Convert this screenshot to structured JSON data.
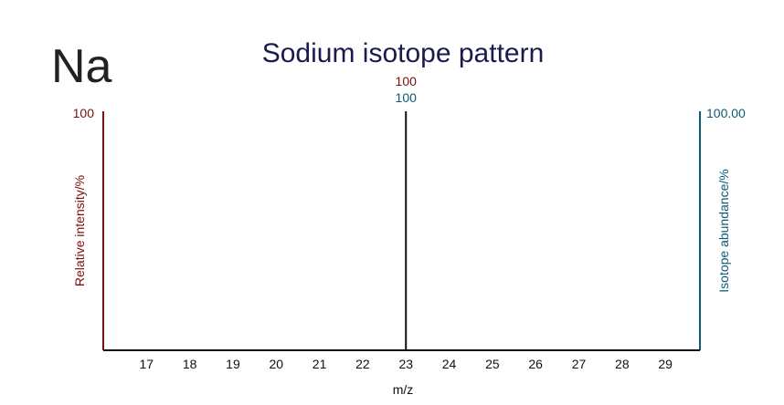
{
  "element_symbol": "Na",
  "colors": {
    "intensity": "#7a0f0f",
    "abundance": "#0d5a78",
    "peak": "#111111",
    "title": "#1a1a4e"
  },
  "chart_data": {
    "type": "bar",
    "title": "Sodium isotope pattern",
    "xlabel": "m/z",
    "ylabel_left": "Relative intensity/%",
    "ylabel_right": "Isotope abundance/%",
    "x_ticks": [
      17,
      18,
      19,
      20,
      21,
      22,
      23,
      24,
      25,
      26,
      27,
      28,
      29
    ],
    "xlim": [
      16.0,
      29.8
    ],
    "ylim": [
      0,
      100
    ],
    "left_axis_max_label": "100",
    "right_axis_max_label": "100.00",
    "peaks": [
      {
        "mz": 23,
        "relative_intensity": 100,
        "isotope_abundance": 100,
        "intensity_label": "100",
        "abundance_label": "100"
      }
    ]
  }
}
